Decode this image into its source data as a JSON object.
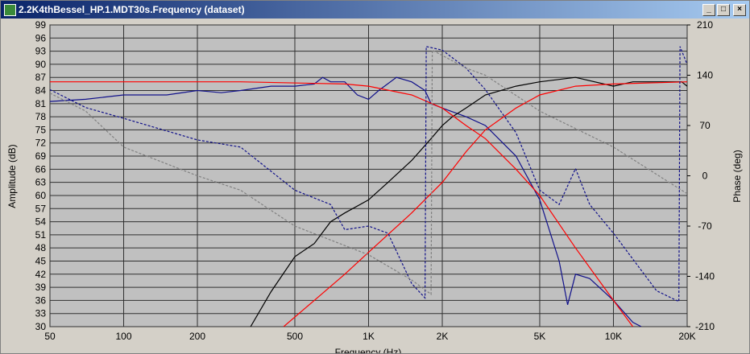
{
  "window_title": "2.2K4thBessel_HP.1.MDT30s.Frequency (dataset)",
  "chart_data": {
    "type": "line",
    "xlabel": "Frequency (Hz)",
    "ylabel": "Amplitude (dB)",
    "y2label": "Phase (deg)",
    "xscale": "log",
    "grid": true,
    "xlim": [
      50,
      20000
    ],
    "xticks": [
      50,
      100,
      200,
      500,
      {
        "value": 1000,
        "label": "1K"
      },
      {
        "value": 2000,
        "label": "2K"
      },
      {
        "value": 5000,
        "label": "5K"
      },
      {
        "value": 10000,
        "label": "10K"
      },
      {
        "value": 20000,
        "label": "20K"
      }
    ],
    "ylim": [
      30,
      99
    ],
    "yticks": [
      30,
      33,
      36,
      39,
      42,
      45,
      48,
      51,
      54,
      57,
      60,
      63,
      66,
      69,
      72,
      75,
      78,
      81,
      84,
      87,
      90,
      93,
      96,
      99
    ],
    "y2lim": [
      -210,
      210
    ],
    "y2ticks": [
      -210,
      -140,
      -70,
      0,
      70,
      140,
      210
    ],
    "series": [
      {
        "color": "#10108a",
        "dash": false,
        "x": [
          50,
          70,
          100,
          150,
          200,
          250,
          300,
          400,
          500,
          600,
          650,
          700,
          800,
          900,
          1000,
          1100,
          1300,
          1500,
          1700,
          1800,
          2000,
          2500,
          3000,
          4000,
          5000,
          6000,
          6500,
          7000,
          8000,
          10000,
          12000,
          13000
        ],
        "values": [
          81.5,
          82,
          83,
          83,
          84,
          83.5,
          84,
          85,
          85,
          85.5,
          87,
          86,
          86,
          83,
          82,
          84,
          87,
          86,
          84,
          81,
          80,
          78,
          76,
          69,
          59,
          45,
          35,
          42,
          41,
          36,
          31,
          30
        ]
      },
      {
        "color": "#000000",
        "dash": false,
        "x": [
          330,
          400,
          500,
          600,
          700,
          800,
          1000,
          1200,
          1500,
          1800,
          2000,
          2200,
          2500,
          3000,
          4000,
          5000,
          7000,
          10000,
          12000,
          15000,
          19000,
          20000
        ],
        "values": [
          30,
          38,
          46,
          49,
          54,
          56,
          59,
          63,
          68,
          73,
          76,
          78,
          80,
          83,
          85,
          86,
          87,
          85,
          86,
          86,
          86,
          85
        ]
      },
      {
        "color": "#ff0000",
        "dash": false,
        "x": [
          50,
          300,
          800,
          1000,
          1500,
          2000,
          2500,
          3000,
          4000,
          5000,
          7000,
          10000,
          12000
        ],
        "values": [
          86,
          86,
          85.5,
          85,
          83,
          80,
          76,
          73,
          66,
          60,
          48,
          36,
          30
        ]
      },
      {
        "color": "#ff0000",
        "dash": false,
        "x": [
          450,
          600,
          800,
          1000,
          1500,
          2000,
          2500,
          3000,
          4000,
          5000,
          7000,
          10000,
          20000
        ],
        "values": [
          30,
          36,
          42,
          47,
          56,
          63,
          70,
          75,
          80,
          83,
          85,
          85.5,
          86
        ]
      },
      {
        "color": "#10108a",
        "dash": true,
        "axis": "y2",
        "x": [
          50,
          70,
          100,
          200,
          300,
          500,
          700,
          800,
          1000,
          1200,
          1500,
          1700,
          1720,
          2000,
          2500,
          3000,
          4000,
          5000,
          6000,
          7000,
          8000,
          10000,
          15000,
          18500,
          18700,
          20000
        ],
        "values": [
          120,
          95,
          80,
          50,
          40,
          -20,
          -40,
          -75,
          -70,
          -80,
          -150,
          -170,
          180,
          175,
          150,
          120,
          60,
          -20,
          -40,
          10,
          -40,
          -80,
          -160,
          -175,
          180,
          155
        ]
      },
      {
        "color": "#808080",
        "dash": true,
        "axis": "y2",
        "x": [
          50,
          70,
          100,
          200,
          300,
          500,
          1000,
          1500,
          1800,
          1820,
          2500,
          3000,
          5000,
          10000,
          20000
        ],
        "values": [
          115,
          90,
          40,
          0,
          -20,
          -70,
          -110,
          -145,
          -165,
          175,
          150,
          140,
          90,
          40,
          -25
        ]
      }
    ]
  }
}
